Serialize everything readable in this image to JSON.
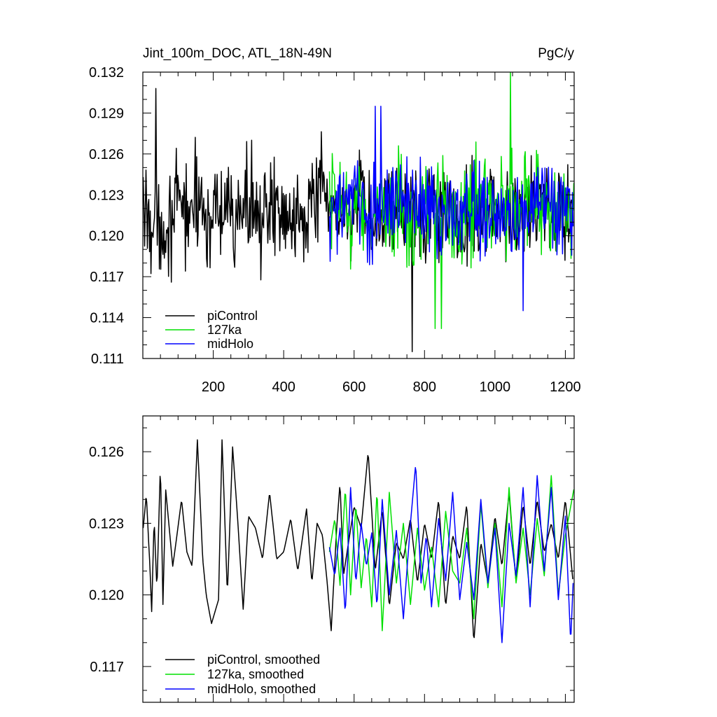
{
  "chart_data": [
    {
      "type": "line",
      "title": "Jint_100m_DOC, ATL_18N-49N",
      "units": "PgC/y",
      "xlabel": "",
      "ylabel": "",
      "xlim": [
        0,
        1225
      ],
      "ylim": [
        0.111,
        0.132
      ],
      "xticks": [
        200,
        400,
        600,
        800,
        1000,
        1200
      ],
      "xtick_labels": [
        "200",
        "400",
        "600",
        "800",
        "1000",
        "1200"
      ],
      "yticks": [
        0.111,
        0.114,
        0.117,
        0.12,
        0.123,
        0.126,
        0.129,
        0.132
      ],
      "ytick_labels": [
        "0.111",
        "0.114",
        "0.117",
        "0.120",
        "0.123",
        "0.126",
        "0.129",
        "0.132"
      ],
      "grid": false,
      "legend_position": "bottom-left",
      "series": [
        {
          "name": "piControl",
          "color": "#000000",
          "x": [
            1,
            50,
            100,
            150,
            200,
            250,
            300,
            350,
            400,
            450,
            500,
            550,
            600,
            650,
            700,
            750,
            800,
            850,
            900,
            950,
            1000,
            1050,
            1100,
            1150,
            1200,
            1222
          ],
          "y": [
            0.122,
            0.1205,
            0.1218,
            0.1222,
            0.1215,
            0.121,
            0.1226,
            0.1212,
            0.1219,
            0.1221,
            0.1228,
            0.1216,
            0.1222,
            0.1205,
            0.1225,
            0.1218,
            0.122,
            0.1214,
            0.1208,
            0.1222,
            0.1218,
            0.121,
            0.1226,
            0.1219,
            0.1215,
            0.122
          ],
          "min": 0.1115,
          "max": 0.1308
        },
        {
          "name": "127ka",
          "color": "#00e000",
          "x": [
            530,
            550,
            600,
            650,
            700,
            750,
            800,
            850,
            900,
            950,
            1000,
            1050,
            1100,
            1150,
            1200,
            1225
          ],
          "y": [
            0.1215,
            0.1225,
            0.1219,
            0.1214,
            0.1222,
            0.1216,
            0.1224,
            0.1219,
            0.1212,
            0.1226,
            0.1218,
            0.1222,
            0.1229,
            0.1218,
            0.1215,
            0.1225
          ],
          "min": 0.1132,
          "max": 0.132
        },
        {
          "name": "midHolo",
          "color": "#0000ff",
          "x": [
            530,
            550,
            600,
            650,
            700,
            750,
            800,
            850,
            900,
            950,
            1000,
            1050,
            1100,
            1150,
            1200,
            1222
          ],
          "y": [
            0.121,
            0.1221,
            0.1226,
            0.1212,
            0.1228,
            0.1221,
            0.1219,
            0.1214,
            0.1223,
            0.1225,
            0.1211,
            0.1214,
            0.1221,
            0.1225,
            0.122,
            0.121
          ],
          "min": 0.1145,
          "max": 0.1295
        }
      ]
    },
    {
      "type": "line",
      "title": "",
      "xlabel": "",
      "ylabel": "",
      "xlim": [
        0,
        1225
      ],
      "ylim": [
        0.1155,
        0.1275
      ],
      "xticks": [
        200,
        400,
        600,
        800,
        1000,
        1200
      ],
      "yticks": [
        0.117,
        0.12,
        0.123,
        0.126
      ],
      "ytick_labels": [
        "0.117",
        "0.120",
        "0.123",
        "0.126"
      ],
      "grid": false,
      "legend_position": "bottom-left",
      "series": [
        {
          "name": "piControl, smoothed",
          "color": "#000000",
          "x": [
            1,
            10,
            20,
            25,
            32,
            40,
            50,
            57,
            65,
            75,
            85,
            95,
            110,
            125,
            140,
            155,
            170,
            180,
            195,
            215,
            225,
            240,
            255,
            270,
            285,
            300,
            320,
            340,
            360,
            380,
            400,
            420,
            440,
            465,
            480,
            495,
            510,
            523,
            535,
            550,
            560,
            570,
            580,
            600,
            620,
            640,
            660,
            680,
            700,
            720,
            740,
            760,
            780,
            800,
            820,
            840,
            860,
            880,
            900,
            920,
            940,
            960,
            980,
            1000,
            1020,
            1040,
            1060,
            1080,
            1100,
            1120,
            1140,
            1160,
            1180,
            1200,
            1222
          ],
          "y": [
            0.1228,
            0.1242,
            0.1212,
            0.1193,
            0.1232,
            0.1202,
            0.1255,
            0.1196,
            0.1244,
            0.1228,
            0.1212,
            0.1223,
            0.124,
            0.1218,
            0.1212,
            0.1265,
            0.1215,
            0.12,
            0.1188,
            0.1198,
            0.1265,
            0.12,
            0.1262,
            0.123,
            0.1194,
            0.1233,
            0.1228,
            0.1215,
            0.1243,
            0.1215,
            0.1218,
            0.1232,
            0.121,
            0.1236,
            0.1205,
            0.123,
            0.1225,
            0.1206,
            0.1185,
            0.1227,
            0.1247,
            0.1208,
            0.1218,
            0.1237,
            0.1228,
            0.126,
            0.121,
            0.1236,
            0.1195,
            0.1222,
            0.1215,
            0.1232,
            0.1205,
            0.123,
            0.1215,
            0.124,
            0.1195,
            0.1225,
            0.1215,
            0.1238,
            0.118,
            0.1222,
            0.1205,
            0.1233,
            0.1212,
            0.1243,
            0.1205,
            0.1238,
            0.1212,
            0.124,
            0.1218,
            0.123,
            0.1215,
            0.124,
            0.1205
          ]
        },
        {
          "name": "127ka, smoothed",
          "color": "#00e000",
          "x": [
            530,
            545,
            560,
            575,
            590,
            605,
            620,
            635,
            650,
            665,
            680,
            700,
            720,
            740,
            760,
            780,
            800,
            820,
            840,
            860,
            880,
            900,
            920,
            940,
            960,
            980,
            1000,
            1020,
            1040,
            1060,
            1080,
            1100,
            1120,
            1140,
            1160,
            1180,
            1200,
            1225
          ],
          "y": [
            0.1218,
            0.1232,
            0.1204,
            0.1245,
            0.12,
            0.1238,
            0.1203,
            0.1225,
            0.1195,
            0.1244,
            0.1185,
            0.1243,
            0.1205,
            0.123,
            0.1196,
            0.1228,
            0.1202,
            0.122,
            0.1195,
            0.1235,
            0.121,
            0.1205,
            0.1228,
            0.119,
            0.1238,
            0.1203,
            0.123,
            0.1195,
            0.1245,
            0.1205,
            0.1228,
            0.12,
            0.1232,
            0.1208,
            0.125,
            0.12,
            0.1225,
            0.1245
          ]
        },
        {
          "name": "midHolo, smoothed",
          "color": "#0000ff",
          "x": [
            530,
            545,
            560,
            575,
            590,
            605,
            620,
            635,
            650,
            665,
            680,
            700,
            720,
            740,
            760,
            775,
            790,
            805,
            820,
            840,
            860,
            880,
            900,
            920,
            940,
            960,
            980,
            1000,
            1020,
            1040,
            1060,
            1080,
            1100,
            1120,
            1140,
            1160,
            1180,
            1200,
            1215,
            1222
          ],
          "y": [
            0.122,
            0.1208,
            0.1228,
            0.1192,
            0.1245,
            0.1205,
            0.123,
            0.1212,
            0.1226,
            0.1195,
            0.124,
            0.12,
            0.1227,
            0.119,
            0.123,
            0.1255,
            0.1205,
            0.1225,
            0.1195,
            0.1232,
            0.1206,
            0.1243,
            0.1198,
            0.1222,
            0.1198,
            0.124,
            0.1205,
            0.1228,
            0.118,
            0.123,
            0.1208,
            0.1245,
            0.1195,
            0.125,
            0.121,
            0.1245,
            0.1198,
            0.1233,
            0.118,
            0.1205
          ]
        }
      ]
    }
  ]
}
